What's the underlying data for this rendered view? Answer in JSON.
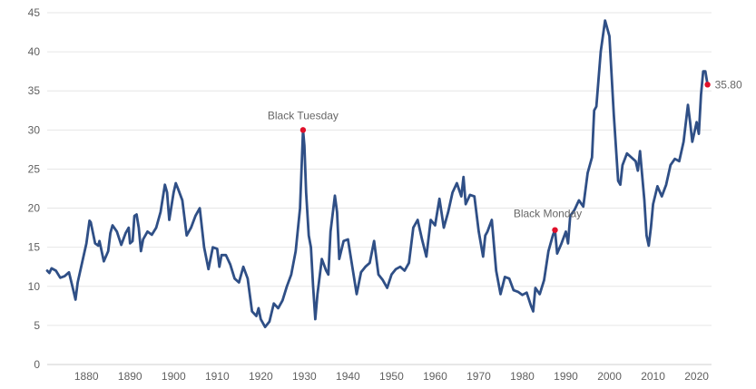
{
  "chart_data": {
    "type": "line",
    "title": "",
    "xlabel": "",
    "ylabel": "",
    "xlim": [
      1871,
      2023
    ],
    "ylim": [
      0,
      45
    ],
    "x_ticks": [
      1880,
      1890,
      1900,
      1910,
      1920,
      1930,
      1940,
      1950,
      1960,
      1970,
      1980,
      1990,
      2000,
      2010,
      2020
    ],
    "y_ticks": [
      0,
      5,
      10,
      15,
      20,
      25,
      30,
      35,
      40,
      45
    ],
    "grid": "horizontal",
    "colors": {
      "line": "#2f4f86",
      "marker": "#e0102a",
      "grid": "#e6e6e6"
    },
    "series": [
      {
        "points": [
          [
            1871.0,
            12.0
          ],
          [
            1871.5,
            11.7
          ],
          [
            1872.0,
            12.3
          ],
          [
            1873.0,
            12.0
          ],
          [
            1874.0,
            11.1
          ],
          [
            1875.0,
            11.3
          ],
          [
            1876.0,
            11.8
          ],
          [
            1877.0,
            9.5
          ],
          [
            1877.5,
            8.3
          ],
          [
            1878.0,
            10.5
          ],
          [
            1879.0,
            13.0
          ],
          [
            1880.0,
            15.5
          ],
          [
            1880.7,
            18.4
          ],
          [
            1881.0,
            18.2
          ],
          [
            1882.0,
            15.5
          ],
          [
            1882.7,
            15.2
          ],
          [
            1883.0,
            15.8
          ],
          [
            1884.0,
            13.2
          ],
          [
            1885.0,
            14.5
          ],
          [
            1885.5,
            16.8
          ],
          [
            1886.0,
            17.8
          ],
          [
            1887.0,
            17.0
          ],
          [
            1888.0,
            15.3
          ],
          [
            1889.0,
            16.8
          ],
          [
            1889.7,
            17.5
          ],
          [
            1890.0,
            15.5
          ],
          [
            1890.6,
            15.8
          ],
          [
            1891.0,
            19.0
          ],
          [
            1891.5,
            19.2
          ],
          [
            1892.0,
            17.5
          ],
          [
            1892.5,
            14.5
          ],
          [
            1893.0,
            16.0
          ],
          [
            1894.0,
            17.0
          ],
          [
            1895.0,
            16.6
          ],
          [
            1896.0,
            17.5
          ],
          [
            1897.0,
            19.5
          ],
          [
            1898.0,
            23.0
          ],
          [
            1898.5,
            22.0
          ],
          [
            1899.0,
            18.5
          ],
          [
            1900.0,
            22.0
          ],
          [
            1900.5,
            23.2
          ],
          [
            1901.0,
            22.5
          ],
          [
            1902.0,
            21.0
          ],
          [
            1903.0,
            16.5
          ],
          [
            1904.0,
            17.5
          ],
          [
            1905.0,
            19.0
          ],
          [
            1906.0,
            20.0
          ],
          [
            1907.0,
            15.0
          ],
          [
            1908.0,
            12.2
          ],
          [
            1909.0,
            15.0
          ],
          [
            1910.0,
            14.8
          ],
          [
            1910.5,
            12.5
          ],
          [
            1911.0,
            14.0
          ],
          [
            1912.0,
            14.0
          ],
          [
            1913.0,
            12.8
          ],
          [
            1914.0,
            11.0
          ],
          [
            1915.0,
            10.5
          ],
          [
            1916.0,
            12.5
          ],
          [
            1917.0,
            11.0
          ],
          [
            1918.0,
            6.8
          ],
          [
            1919.0,
            6.2
          ],
          [
            1919.5,
            7.2
          ],
          [
            1920.0,
            5.8
          ],
          [
            1921.0,
            4.8
          ],
          [
            1922.0,
            5.5
          ],
          [
            1923.0,
            7.8
          ],
          [
            1924.0,
            7.2
          ],
          [
            1925.0,
            8.2
          ],
          [
            1926.0,
            10.0
          ],
          [
            1927.0,
            11.5
          ],
          [
            1928.0,
            14.5
          ],
          [
            1929.0,
            20.0
          ],
          [
            1929.7,
            30.0
          ],
          [
            1930.0,
            28.0
          ],
          [
            1930.4,
            22.0
          ],
          [
            1931.0,
            16.5
          ],
          [
            1931.5,
            15.0
          ],
          [
            1932.0,
            10.0
          ],
          [
            1932.5,
            5.8
          ],
          [
            1933.0,
            9.0
          ],
          [
            1934.0,
            13.5
          ],
          [
            1935.0,
            12.0
          ],
          [
            1935.5,
            11.5
          ],
          [
            1936.0,
            17.0
          ],
          [
            1937.0,
            21.6
          ],
          [
            1937.5,
            19.5
          ],
          [
            1938.0,
            13.5
          ],
          [
            1939.0,
            15.8
          ],
          [
            1940.0,
            16.0
          ],
          [
            1941.0,
            12.5
          ],
          [
            1942.0,
            9.0
          ],
          [
            1943.0,
            11.8
          ],
          [
            1944.0,
            12.5
          ],
          [
            1945.0,
            13.0
          ],
          [
            1946.0,
            15.8
          ],
          [
            1947.0,
            11.5
          ],
          [
            1948.0,
            10.8
          ],
          [
            1949.0,
            9.8
          ],
          [
            1950.0,
            11.5
          ],
          [
            1951.0,
            12.2
          ],
          [
            1952.0,
            12.5
          ],
          [
            1953.0,
            12.0
          ],
          [
            1954.0,
            13.0
          ],
          [
            1955.0,
            17.5
          ],
          [
            1956.0,
            18.5
          ],
          [
            1957.0,
            16.0
          ],
          [
            1958.0,
            13.8
          ],
          [
            1959.0,
            18.5
          ],
          [
            1960.0,
            17.8
          ],
          [
            1961.0,
            21.2
          ],
          [
            1962.0,
            17.5
          ],
          [
            1963.0,
            19.5
          ],
          [
            1964.0,
            22.0
          ],
          [
            1965.0,
            23.2
          ],
          [
            1966.0,
            21.5
          ],
          [
            1966.5,
            24.0
          ],
          [
            1967.0,
            20.5
          ],
          [
            1968.0,
            21.7
          ],
          [
            1969.0,
            21.5
          ],
          [
            1970.0,
            17.0
          ],
          [
            1971.0,
            13.8
          ],
          [
            1971.5,
            16.5
          ],
          [
            1972.0,
            17.0
          ],
          [
            1973.0,
            18.5
          ],
          [
            1974.0,
            12.0
          ],
          [
            1975.0,
            9.0
          ],
          [
            1976.0,
            11.2
          ],
          [
            1977.0,
            11.0
          ],
          [
            1978.0,
            9.5
          ],
          [
            1979.0,
            9.3
          ],
          [
            1980.0,
            8.9
          ],
          [
            1981.0,
            9.2
          ],
          [
            1982.0,
            7.5
          ],
          [
            1982.5,
            6.8
          ],
          [
            1983.0,
            9.8
          ],
          [
            1984.0,
            9.0
          ],
          [
            1985.0,
            10.8
          ],
          [
            1986.0,
            14.5
          ],
          [
            1987.0,
            16.5
          ],
          [
            1987.5,
            17.2
          ],
          [
            1988.0,
            14.2
          ],
          [
            1989.0,
            15.5
          ],
          [
            1990.0,
            17.0
          ],
          [
            1990.5,
            15.5
          ],
          [
            1991.0,
            19.0
          ],
          [
            1992.0,
            19.8
          ],
          [
            1993.0,
            21.0
          ],
          [
            1994.0,
            20.2
          ],
          [
            1995.0,
            24.5
          ],
          [
            1996.0,
            26.5
          ],
          [
            1996.5,
            32.5
          ],
          [
            1997.0,
            33.0
          ],
          [
            1998.0,
            40.0
          ],
          [
            1999.0,
            44.0
          ],
          [
            2000.0,
            42.0
          ],
          [
            2001.0,
            32.0
          ],
          [
            2002.0,
            23.5
          ],
          [
            2002.5,
            23.0
          ],
          [
            2003.0,
            25.5
          ],
          [
            2004.0,
            27.0
          ],
          [
            2005.0,
            26.5
          ],
          [
            2006.0,
            26.0
          ],
          [
            2006.5,
            24.8
          ],
          [
            2007.0,
            27.3
          ],
          [
            2008.0,
            21.0
          ],
          [
            2008.5,
            16.5
          ],
          [
            2009.0,
            15.2
          ],
          [
            2009.5,
            17.5
          ],
          [
            2010.0,
            20.5
          ],
          [
            2011.0,
            22.8
          ],
          [
            2012.0,
            21.5
          ],
          [
            2013.0,
            23.0
          ],
          [
            2014.0,
            25.5
          ],
          [
            2015.0,
            26.3
          ],
          [
            2016.0,
            26.0
          ],
          [
            2017.0,
            28.5
          ],
          [
            2018.0,
            33.2
          ],
          [
            2018.5,
            31.0
          ],
          [
            2019.0,
            28.5
          ],
          [
            2020.0,
            31.0
          ],
          [
            2020.5,
            29.5
          ],
          [
            2021.0,
            34.5
          ],
          [
            2021.5,
            37.5
          ],
          [
            2022.0,
            37.5
          ],
          [
            2022.5,
            35.8
          ]
        ]
      }
    ],
    "annotations": [
      {
        "label": "Black Tuesday",
        "x": 1929.7,
        "y": 30.0,
        "label_pos": "above"
      },
      {
        "label": "Black Monday",
        "x": 1987.5,
        "y": 17.2,
        "label_pos": "above-left"
      },
      {
        "label": "35.80",
        "x": 2022.5,
        "y": 35.8,
        "label_pos": "right"
      }
    ]
  }
}
